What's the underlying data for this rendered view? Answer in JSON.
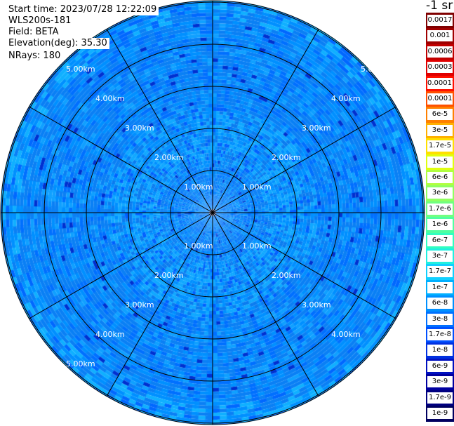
{
  "info": {
    "start_time": "Start time: 2023/07/28 12:22:09",
    "device": "WLS200s-181",
    "field": "Field: BETA",
    "elevation": "Elevation(deg): 35.30",
    "nrays": "NRays: 180"
  },
  "colorbar": {
    "title": "-1 sr",
    "entries": [
      {
        "label": "0.0017",
        "color": "#800000"
      },
      {
        "label": "0.001",
        "color": "#a00000"
      },
      {
        "label": "0.0006",
        "color": "#c00000"
      },
      {
        "label": "0.0003",
        "color": "#e00000"
      },
      {
        "label": "0.00017",
        "color": "#ff1000"
      },
      {
        "label": "0.0001",
        "color": "#ff5000"
      },
      {
        "label": "6e-5",
        "color": "#ff8000"
      },
      {
        "label": "3e-5",
        "color": "#ffb000"
      },
      {
        "label": "1.7e-5",
        "color": "#ffe000"
      },
      {
        "label": "1e-5",
        "color": "#e0ff10"
      },
      {
        "label": "6e-6",
        "color": "#b0ff40"
      },
      {
        "label": "3e-6",
        "color": "#90ff60"
      },
      {
        "label": "1.7e-6",
        "color": "#70ff80"
      },
      {
        "label": "1e-6",
        "color": "#50ffa0"
      },
      {
        "label": "6e-7",
        "color": "#30ffc0"
      },
      {
        "label": "3e-7",
        "color": "#20f0e0"
      },
      {
        "label": "1.7e-7",
        "color": "#10d0ff"
      },
      {
        "label": "1e-7",
        "color": "#00b0ff"
      },
      {
        "label": "6e-8",
        "color": "#0090ff"
      },
      {
        "label": "3e-8",
        "color": "#0070ff"
      },
      {
        "label": "1.7e-8",
        "color": "#0050ff"
      },
      {
        "label": "1e-8",
        "color": "#0030e0"
      },
      {
        "label": "6e-9",
        "color": "#0010c0"
      },
      {
        "label": "3e-9",
        "color": "#0000a0"
      },
      {
        "label": "1.7e-9",
        "color": "#000080"
      },
      {
        "label": "1e-9",
        "color": "#000060"
      }
    ]
  },
  "chart_data": {
    "type": "heatmap",
    "projection": "polar",
    "field": "BETA",
    "units": "-1 sr",
    "range_unit": "km",
    "ring_labels": [
      "1.00km",
      "2.00km",
      "3.00km",
      "4.00km",
      "5.00km",
      "5.0"
    ],
    "ranges_km": [
      1.0,
      2.0,
      3.0,
      4.0,
      5.0
    ],
    "spokes": 12,
    "rays": 180,
    "elevation_deg": 35.3,
    "value_scale": "log",
    "dominant_value_range": [
      1.7e-08,
      1.7e-07
    ],
    "grid": true
  }
}
